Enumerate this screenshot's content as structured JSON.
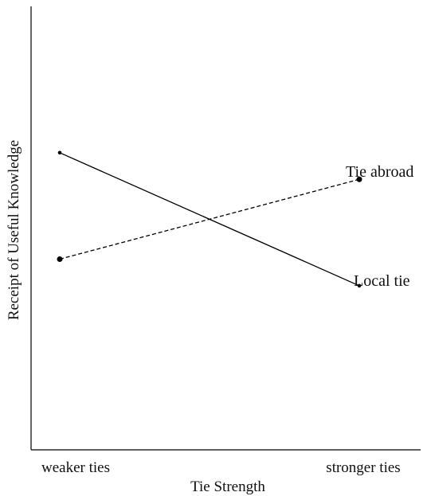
{
  "chart_data": {
    "type": "line",
    "title": "",
    "xlabel": "Tie Strength",
    "ylabel": "Receipt of Useful Knowledge",
    "categories": [
      "weaker ties",
      "stronger ties"
    ],
    "ylim": [
      0,
      10
    ],
    "grid": false,
    "legend": "none",
    "series": [
      {
        "name": "Local tie",
        "values": [
          6.7,
          3.7
        ],
        "line_style": "solid",
        "marker": "small-dot",
        "color": "#000000"
      },
      {
        "name": "Tie abroad",
        "values": [
          4.3,
          6.1
        ],
        "line_style": "dashed",
        "marker": "dot",
        "color": "#000000"
      }
    ]
  }
}
